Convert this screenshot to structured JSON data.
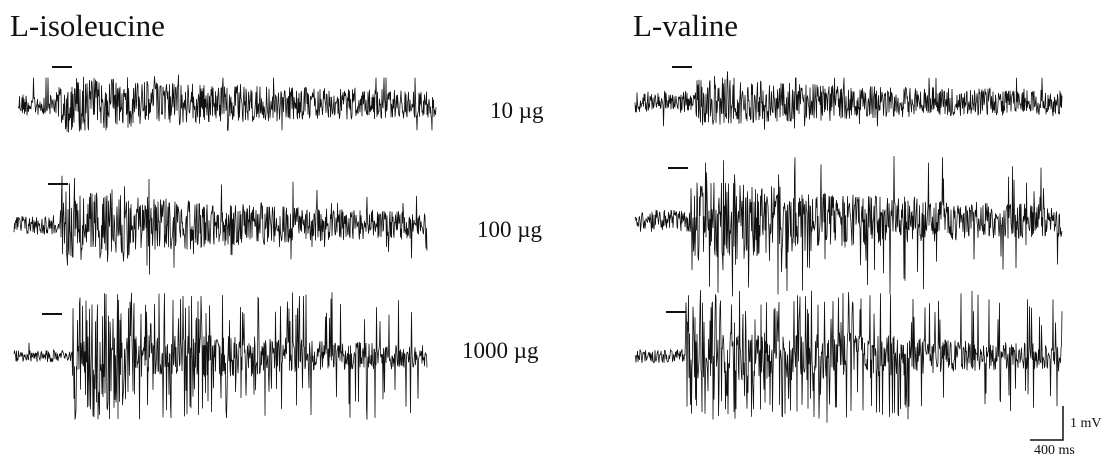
{
  "figure": {
    "panels": [
      {
        "id": "left",
        "title": "L-isoleucine"
      },
      {
        "id": "right",
        "title": "L-valine"
      }
    ],
    "concentrations": [
      "10 µg",
      "100 µg",
      "1000 µg"
    ],
    "scale_bar": {
      "voltage_label": "1 mV",
      "time_label": "400 ms"
    },
    "trace_color": "#111111"
  }
}
